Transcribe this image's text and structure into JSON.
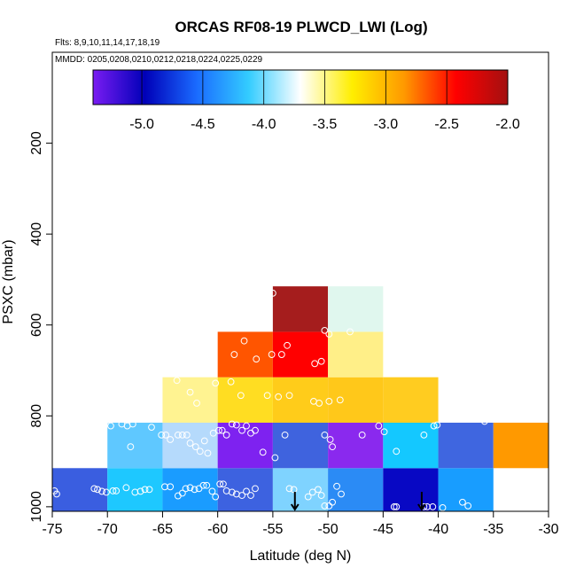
{
  "chart_data": {
    "type": "heatmap",
    "title": "ORCAS RF08-19 PLWCD_LWI (Log)",
    "subtitle_flights": "Flts: 8,9,10,11,14,17,18,19",
    "subtitle_dates": "MMDD: 0205,0208,0210,0212,0218,0224,0225,0229",
    "xlabel": "Latitude (deg N)",
    "ylabel": "PSXC (mbar)",
    "xlim": [
      -75,
      -30
    ],
    "ylim": [
      1010,
      0
    ],
    "x_ticks": [
      -75,
      -70,
      -65,
      -60,
      -55,
      -50,
      -45,
      -40,
      -35,
      -30
    ],
    "x_tick_labels": [
      "-75",
      "-70",
      "-65",
      "-60",
      "-55",
      "-50",
      "-45",
      "-40",
      "-35",
      "-30"
    ],
    "y_ticks": [
      200,
      400,
      600,
      800,
      1000
    ],
    "y_tick_labels": [
      "200",
      "400",
      "600",
      "800",
      "1000"
    ],
    "colorbar": {
      "min": -5.4,
      "max": -2.0,
      "ticks": [
        -5.0,
        -4.5,
        -4.0,
        -3.5,
        -3.0,
        -2.5,
        -2.0
      ],
      "tick_labels": [
        "-5.0",
        "-4.5",
        "-4.0",
        "-3.5",
        "-3.0",
        "-2.5",
        "-2.0"
      ],
      "stops": [
        "#7a1cf2",
        "#0000b8",
        "#1a6bff",
        "#33ccff",
        "#ffffff",
        "#ffee00",
        "#ff9900",
        "#ff0000",
        "#a31010"
      ],
      "segment_count": 6
    },
    "cells": [
      {
        "lat": -75,
        "p": 915,
        "value": -4.55,
        "color": "#3a5ee0"
      },
      {
        "lat": -70,
        "p": 915,
        "value": -4.15,
        "color": "#1ec8ff"
      },
      {
        "lat": -65,
        "p": 915,
        "value": -4.2,
        "color": "#1a9cff"
      },
      {
        "lat": -60,
        "p": 915,
        "value": -4.55,
        "color": "#3d62e0"
      },
      {
        "lat": -55,
        "p": 915,
        "value": -3.8,
        "color": "#7fd3ff"
      },
      {
        "lat": -50,
        "p": 915,
        "value": -4.35,
        "color": "#2b8bf5"
      },
      {
        "lat": -45,
        "p": 915,
        "value": -5.05,
        "color": "#0808c4"
      },
      {
        "lat": -40,
        "p": 915,
        "value": -4.25,
        "color": "#189dff"
      },
      {
        "lat": -70,
        "p": 815,
        "value": -3.95,
        "color": "#5fc8ff"
      },
      {
        "lat": -65,
        "p": 815,
        "value": -3.85,
        "color": "#b5dafc"
      },
      {
        "lat": -60,
        "p": 815,
        "value": -5.25,
        "color": "#7e22f0"
      },
      {
        "lat": -55,
        "p": 815,
        "value": -4.6,
        "color": "#3f63de"
      },
      {
        "lat": -50,
        "p": 815,
        "value": -5.2,
        "color": "#8a29ee"
      },
      {
        "lat": -45,
        "p": 815,
        "value": -4.15,
        "color": "#14c8ff"
      },
      {
        "lat": -40,
        "p": 815,
        "value": -4.55,
        "color": "#3f66e0"
      },
      {
        "lat": -35,
        "p": 815,
        "value": -2.95,
        "color": "#ff9900"
      },
      {
        "lat": -65,
        "p": 715,
        "value": -3.35,
        "color": "#fff391"
      },
      {
        "lat": -60,
        "p": 715,
        "value": -3.15,
        "color": "#ffdd22"
      },
      {
        "lat": -55,
        "p": 715,
        "value": -3.1,
        "color": "#ffcc1a"
      },
      {
        "lat": -50,
        "p": 715,
        "value": -3.1,
        "color": "#ffc81a"
      },
      {
        "lat": -45,
        "p": 715,
        "value": -3.12,
        "color": "#ffcc20"
      },
      {
        "lat": -60,
        "p": 615,
        "value": -2.75,
        "color": "#ff5500"
      },
      {
        "lat": -55,
        "p": 615,
        "value": -2.5,
        "color": "#ff0000"
      },
      {
        "lat": -50,
        "p": 615,
        "value": -3.3,
        "color": "#ffef88"
      },
      {
        "lat": -55,
        "p": 515,
        "value": -2.15,
        "color": "#a51d1d"
      },
      {
        "lat": -50,
        "p": 515,
        "value": -3.55,
        "color": "#e0f7ee"
      }
    ],
    "observation_points": [
      [
        -74.8,
        965
      ],
      [
        -74.6,
        972
      ],
      [
        -71.2,
        960
      ],
      [
        -70.9,
        962
      ],
      [
        -70.5,
        966
      ],
      [
        -70.1,
        968
      ],
      [
        -69.5,
        965
      ],
      [
        -69.2,
        965
      ],
      [
        -68.3,
        958
      ],
      [
        -67.5,
        968
      ],
      [
        -67.0,
        966
      ],
      [
        -66.6,
        962
      ],
      [
        -66.2,
        962
      ],
      [
        -64.8,
        956
      ],
      [
        -64.3,
        956
      ],
      [
        -63.6,
        976
      ],
      [
        -63.2,
        970
      ],
      [
        -62.9,
        960
      ],
      [
        -62.5,
        958
      ],
      [
        -62.1,
        962
      ],
      [
        -61.7,
        960
      ],
      [
        -61.3,
        953
      ],
      [
        -61.0,
        953
      ],
      [
        -60.5,
        966
      ],
      [
        -60.2,
        978
      ],
      [
        -59.8,
        950
      ],
      [
        -59.5,
        950
      ],
      [
        -59.2,
        965
      ],
      [
        -58.7,
        968
      ],
      [
        -58.3,
        972
      ],
      [
        -57.8,
        975
      ],
      [
        -57.4,
        966
      ],
      [
        -57.0,
        975
      ],
      [
        -56.6,
        960
      ],
      [
        -53.5,
        960
      ],
      [
        -53.1,
        962
      ],
      [
        -51.8,
        978
      ],
      [
        -51.4,
        968
      ],
      [
        -50.9,
        962
      ],
      [
        -50.6,
        975
      ],
      [
        -50.3,
        998
      ],
      [
        -49.9,
        998
      ],
      [
        -49.6,
        990
      ],
      [
        -49.2,
        955
      ],
      [
        -48.8,
        972
      ],
      [
        -44.0,
        1000
      ],
      [
        -43.8,
        1000
      ],
      [
        -41.3,
        1000
      ],
      [
        -41.0,
        1000
      ],
      [
        -40.5,
        1000
      ],
      [
        -39.6,
        1002
      ],
      [
        -37.8,
        990
      ],
      [
        -37.3,
        998
      ],
      [
        -70.2,
        818
      ],
      [
        -69.7,
        822
      ],
      [
        -68.7,
        818
      ],
      [
        -68.2,
        822
      ],
      [
        -67.7,
        818
      ],
      [
        -67.9,
        868
      ],
      [
        -66.0,
        825
      ],
      [
        -65.1,
        842
      ],
      [
        -64.7,
        842
      ],
      [
        -64.3,
        852
      ],
      [
        -63.6,
        842
      ],
      [
        -63.2,
        842
      ],
      [
        -62.8,
        842
      ],
      [
        -62.5,
        860
      ],
      [
        -62.0,
        868
      ],
      [
        -61.6,
        878
      ],
      [
        -61.2,
        855
      ],
      [
        -60.9,
        882
      ],
      [
        -60.4,
        838
      ],
      [
        -59.9,
        832
      ],
      [
        -59.6,
        832
      ],
      [
        -59.2,
        842
      ],
      [
        -58.7,
        818
      ],
      [
        -58.3,
        820
      ],
      [
        -57.8,
        832
      ],
      [
        -57.4,
        822
      ],
      [
        -57.0,
        838
      ],
      [
        -56.6,
        832
      ],
      [
        -55.9,
        880
      ],
      [
        -54.8,
        892
      ],
      [
        -53.9,
        842
      ],
      [
        -50.3,
        842
      ],
      [
        -49.8,
        852
      ],
      [
        -49.6,
        868
      ],
      [
        -46.9,
        842
      ],
      [
        -45.4,
        822
      ],
      [
        -44.9,
        835
      ],
      [
        -43.8,
        878
      ],
      [
        -41.3,
        842
      ],
      [
        -40.4,
        822
      ],
      [
        -40.1,
        820
      ],
      [
        -35.8,
        812
      ],
      [
        -63.7,
        722
      ],
      [
        -62.5,
        748
      ],
      [
        -61.9,
        772
      ],
      [
        -60.2,
        728
      ],
      [
        -58.8,
        725
      ],
      [
        -57.9,
        755
      ],
      [
        -55.5,
        755
      ],
      [
        -54.5,
        758
      ],
      [
        -53.5,
        755
      ],
      [
        -51.3,
        768
      ],
      [
        -50.8,
        772
      ],
      [
        -49.9,
        768
      ],
      [
        -48.9,
        765
      ],
      [
        -58.5,
        665
      ],
      [
        -57.6,
        635
      ],
      [
        -56.5,
        675
      ],
      [
        -55.1,
        665
      ],
      [
        -54.2,
        665
      ],
      [
        -53.7,
        645
      ],
      [
        -51.2,
        685
      ],
      [
        -50.6,
        680
      ],
      [
        -50.3,
        612
      ],
      [
        -49.9,
        620
      ],
      [
        -48.0,
        615
      ],
      [
        -55.0,
        530
      ]
    ],
    "arrow_markers": [
      -53.0,
      -41.5
    ],
    "mask_left_limit_800": -70,
    "bin_width_deg": 5,
    "bin_height_mbar": 100
  }
}
